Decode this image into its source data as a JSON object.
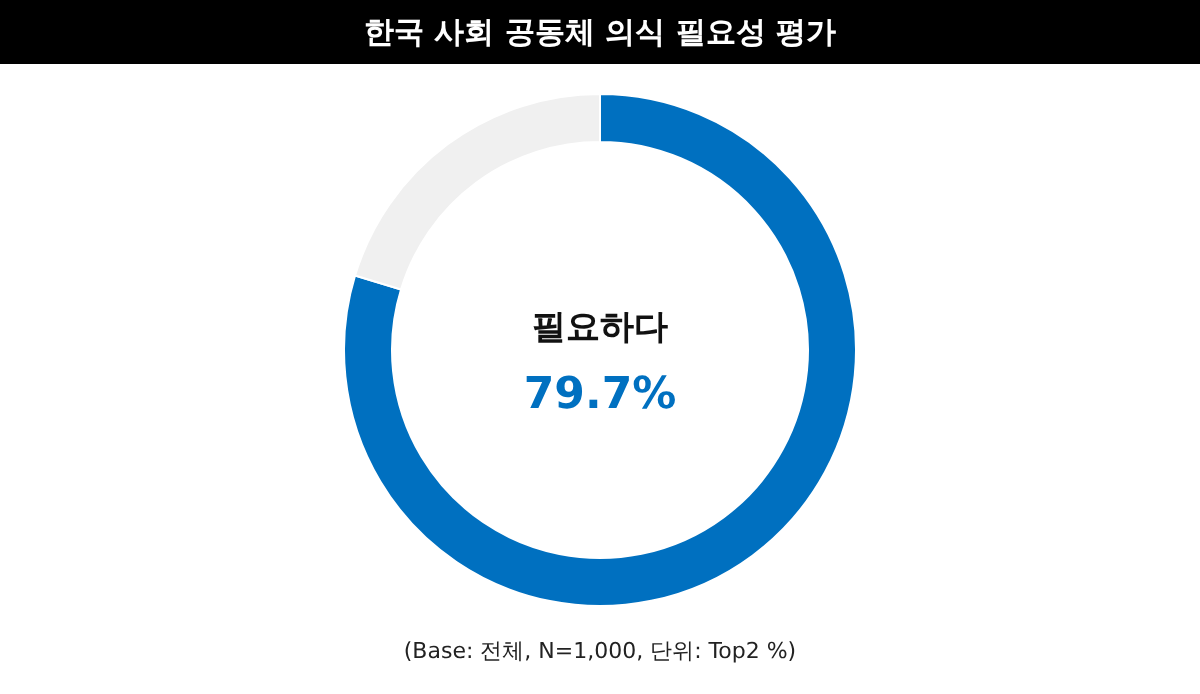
{
  "chart_data": {
    "type": "donut",
    "title": "한국 사회 공동체 의식 필요성 평가",
    "categories": [
      "필요하다",
      null
    ],
    "values": [
      79.7,
      20.3
    ],
    "colors": [
      "#0070c0",
      "#f0f0f0"
    ],
    "value_labels": [
      "79.7%",
      null
    ],
    "annotations": [
      "(Base: 전체, N=1,000, 단위: Top2 %)"
    ]
  }
}
